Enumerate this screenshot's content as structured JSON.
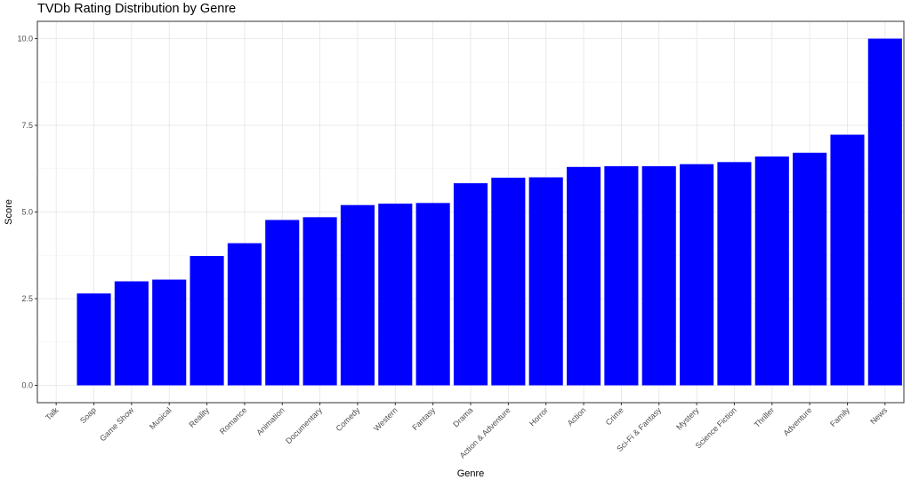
{
  "chart_data": {
    "type": "bar",
    "title": "TVDb Rating Distribution by Genre",
    "xlabel": "Genre",
    "ylabel": "Score",
    "categories": [
      "Talk",
      "Soap",
      "Game Show",
      "Musical",
      "Reality",
      "Romance",
      "Animation",
      "Documentary",
      "Comedy",
      "Western",
      "Fantasy",
      "Drama",
      "Action & Adventure",
      "Horror",
      "Action",
      "Crime",
      "Sci-Fi & Fantasy",
      "Mystery",
      "Science Fiction",
      "Thriller",
      "Adventure",
      "Family",
      "News"
    ],
    "values": [
      0,
      2.65,
      3.0,
      3.05,
      3.73,
      4.1,
      4.77,
      4.85,
      5.2,
      5.24,
      5.26,
      5.83,
      5.99,
      6.0,
      6.3,
      6.32,
      6.32,
      6.38,
      6.44,
      6.6,
      6.71,
      7.23,
      10.0
    ],
    "yticks": [
      0.0,
      2.5,
      5.0,
      7.5,
      10.0
    ],
    "ytick_labels": [
      "0.0",
      "2.5",
      "5.0",
      "7.5",
      "10.0"
    ],
    "ylim": [
      -0.5,
      10.5
    ],
    "grid": true,
    "bar_color": "#0000ff"
  }
}
